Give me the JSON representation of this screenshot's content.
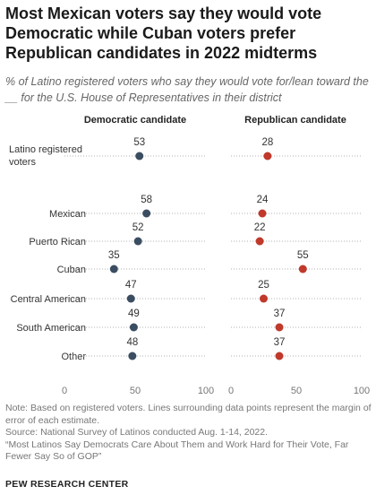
{
  "title": "Most Mexican voters say they would vote Democratic while Cuban voters prefer Republican candidates in 2022 midterms",
  "subtitle": "% of Latino registered voters who say they would vote for/lean toward the __ for the U.S. House of Representatives in their district",
  "footer": {
    "note": "Note: Based on registered voters. Lines surrounding data points represent the margin of error of each estimate.",
    "source": "Source: National Survey of Latinos conducted Aug. 1-14, 2022.",
    "report": "“Most Latinos Say Democrats Care About Them and Work Hard for Their Vote, Far Fewer Say So of GOP”",
    "brand": "PEW RESEARCH CENTER"
  },
  "chart_data": {
    "type": "scatter",
    "panels": [
      {
        "name": "Democratic candidate",
        "color": "#3b4d61"
      },
      {
        "name": "Republican candidate",
        "color": "#c0392b"
      }
    ],
    "axis_ticks": [
      "0",
      "50",
      "100"
    ],
    "xlim": [
      0,
      100
    ],
    "rows": [
      {
        "label": "Latino registered voters",
        "label_lines": [
          "Latino registered",
          "voters"
        ],
        "dem": 53,
        "dem_moe": 0,
        "rep": 28,
        "rep_moe": 0
      },
      {
        "label": "Mexican",
        "label_lines": [
          "Mexican"
        ],
        "dem": 58,
        "dem_moe": 0,
        "rep": 24,
        "rep_moe": 0
      },
      {
        "label": "Puerto Rican",
        "label_lines": [
          "Puerto Rican"
        ],
        "dem": 52,
        "dem_moe": 0,
        "rep": 22,
        "rep_moe": 0
      },
      {
        "label": "Cuban",
        "label_lines": [
          "Cuban"
        ],
        "dem": 35,
        "dem_moe": 0,
        "rep": 55,
        "rep_moe": 0
      },
      {
        "label": "Central American",
        "label_lines": [
          "Central American"
        ],
        "dem": 47,
        "dem_moe": 0,
        "rep": 25,
        "rep_moe": 0
      },
      {
        "label": "South American",
        "label_lines": [
          "South American"
        ],
        "dem": 49,
        "dem_moe": 0,
        "rep": 37,
        "rep_moe": 0
      },
      {
        "label": "Other",
        "label_lines": [
          "Other"
        ],
        "dem": 48,
        "dem_moe": 0,
        "rep": 37,
        "rep_moe": 0
      }
    ],
    "grid": true,
    "legend": "none"
  }
}
